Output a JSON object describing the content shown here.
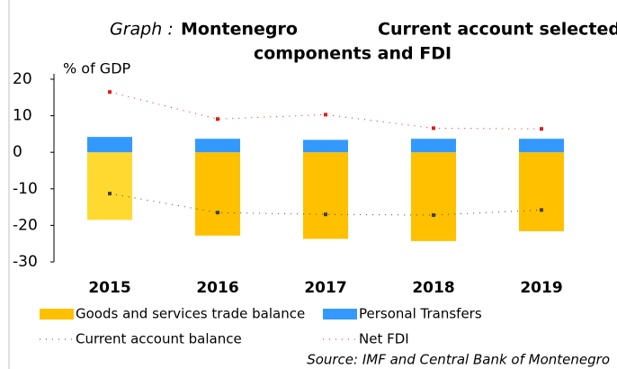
{
  "chart_data": {
    "type": "bar",
    "title_prefix": "Graph :",
    "title_country": "Montenegro",
    "title": [
      "Current account selected",
      "components and FDI"
    ],
    "y_label": "% of GDP",
    "source": "Source: IMF and Central Bank of Montenegro",
    "categories": [
      "2015",
      "2016",
      "2017",
      "2018",
      "2019"
    ],
    "ylim": [
      -30,
      20
    ],
    "yticks": [
      20,
      10,
      0,
      -10,
      -20,
      -30
    ],
    "series": [
      {
        "name": "Goods and services trade balance",
        "type": "bar",
        "color": "#ffc000",
        "point_colors": [
          "#ffd92f",
          "#ffc000",
          "#ffc000",
          "#ffc000",
          "#ffc000"
        ],
        "values": [
          -18.5,
          -22.8,
          -23.7,
          -24.3,
          -21.6
        ]
      },
      {
        "name": "Personal Transfers",
        "type": "bar",
        "color": "#3399ff",
        "values": [
          4.2,
          3.7,
          3.4,
          3.7,
          3.7
        ]
      },
      {
        "name": "Current account balance",
        "type": "line",
        "color": "#404040",
        "values": [
          -11.3,
          -16.5,
          -17.0,
          -17.2,
          -15.8
        ]
      },
      {
        "name": "Net FDI",
        "type": "line",
        "color": "#e31a1c",
        "values": [
          16.5,
          9.1,
          10.3,
          6.6,
          6.4
        ]
      }
    ]
  }
}
